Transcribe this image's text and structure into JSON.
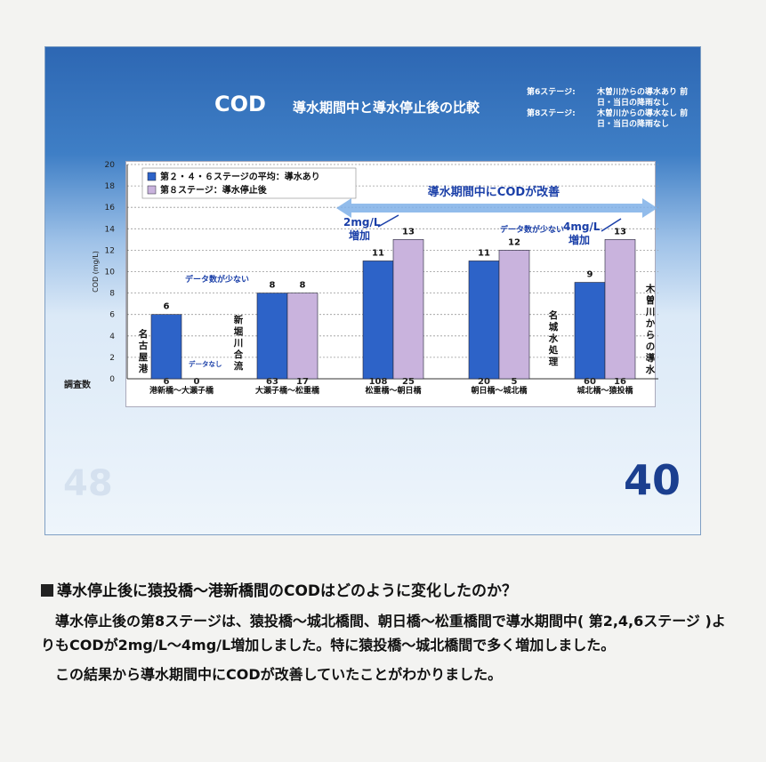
{
  "slide": {
    "title_main": "COD",
    "title_sub": "導水期間中と導水停止後の比較",
    "stage_info": [
      {
        "stage": "第6ステージ:",
        "desc": "木曽川からの導水あり 前日・当日の降雨なし"
      },
      {
        "stage": "第8ステージ:",
        "desc": "木曽川からの導水なし 前日・当日の降雨なし"
      }
    ],
    "page_number": "40",
    "ghost_number": "48",
    "survey_label": "調査数"
  },
  "chart_data": {
    "type": "bar",
    "categories": [
      "港新橋～大瀬子橋",
      "大瀬子橋～松重橋",
      "松重橋～朝日橋",
      "朝日橋～城北橋",
      "城北橋～猿投橋"
    ],
    "series": [
      {
        "name": "第２・４・６ステージの平均：導水あり",
        "values": [
          6,
          8,
          11,
          11,
          9
        ],
        "color": "#2d63c8"
      },
      {
        "name": "第８ステージ：導水停止後",
        "values": [
          null,
          8,
          13,
          12,
          13
        ],
        "color": "#c9b3dd"
      }
    ],
    "survey_counts": [
      [
        6,
        0
      ],
      [
        63,
        17
      ],
      [
        108,
        25
      ],
      [
        20,
        5
      ],
      [
        60,
        16
      ]
    ],
    "ylabel": "COD (mg/L)",
    "ylim": [
      0,
      20
    ],
    "yticks": [
      0,
      2,
      4,
      6,
      8,
      10,
      12,
      14,
      16,
      18,
      20
    ],
    "legend_position": "top-left",
    "grid": true,
    "annotations": {
      "banner": "導水期間中にCODが改善",
      "few_data_1": "データ数が少ない",
      "few_data_2": "データ数が少ない",
      "no_data": "データなし",
      "increase_2": "2mg/L\n増加",
      "increase_4": "4mg/L\n増加",
      "nagoya_port": "名古屋港",
      "shinhori": "新堀川合流",
      "meijo": "名城水処理",
      "kiso": "木曽川からの導水"
    }
  },
  "text": {
    "heading": "導水停止後に猿投橋～港新橋間のCODはどのように変化したのか？",
    "paragraph1": "　導水停止後の第8ステージは、猿投橋～城北橋間、朝日橋～松重橋間で導水期間中( 第2,4,6ステージ )よりもCODが2mg/L～4mg/L増加しました。特に猿投橋～城北橋間で多く増加しました。",
    "paragraph2": "　この結果から導水期間中にCODが改善していたことがわかりました。"
  }
}
